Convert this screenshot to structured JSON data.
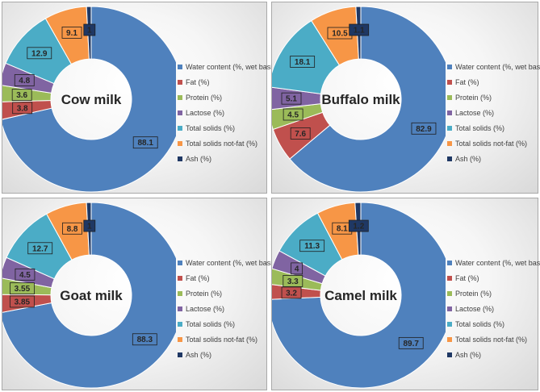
{
  "legend_labels": [
    "Water content (%, wet basis)",
    "Fat (%)",
    "Protein (%)",
    "Lactose (%)",
    "Total solids (%)",
    "Total solids not-fat (%)",
    "Ash (%)"
  ],
  "colors": [
    "#4f81bd",
    "#c0504d",
    "#9bbb59",
    "#8064a2",
    "#4bacc6",
    "#f79646",
    "#1f3864"
  ],
  "chart_data": [
    {
      "type": "pie",
      "subtype": "doughnut",
      "title": "Cow milk",
      "categories": [
        "Water content (%, wet basis)",
        "Fat (%)",
        "Protein (%)",
        "Lactose (%)",
        "Total solids (%)",
        "Total solids not-fat (%)",
        "Ash (%)"
      ],
      "values": [
        88.1,
        3.8,
        3.6,
        4.8,
        12.9,
        9.1,
        1
      ],
      "labels": [
        "88.1",
        "3.8",
        "3.6",
        "4.8",
        "12.9",
        "9.1",
        "1"
      ],
      "legend_position": "right"
    },
    {
      "type": "pie",
      "subtype": "doughnut",
      "title": "Buffalo milk",
      "categories": [
        "Water content (%, wet basis)",
        "Fat (%)",
        "Protein (%)",
        "Lactose (%)",
        "Total solids (%)",
        "Total solids not-fat (%)",
        "Ash (%)"
      ],
      "values": [
        82.9,
        7.6,
        4.5,
        5.1,
        18.1,
        10.5,
        1.1
      ],
      "labels": [
        "82.9",
        "7.6",
        "4.5",
        "5.1",
        "18.1",
        "10.5",
        "1.1"
      ],
      "legend_position": "right"
    },
    {
      "type": "pie",
      "subtype": "doughnut",
      "title": "Goat milk",
      "categories": [
        "Water content (%, wet basis)",
        "Fat (%)",
        "Protein (%)",
        "Lactose (%)",
        "Total solids (%)",
        "Total solids not-fat (%)",
        "Ash (%)"
      ],
      "values": [
        88.3,
        3.85,
        3.55,
        4.5,
        12.7,
        8.8,
        1
      ],
      "labels": [
        "88.3",
        "3.85",
        "3.55",
        "4.5",
        "12.7",
        "8.8",
        "1"
      ],
      "legend_position": "right"
    },
    {
      "type": "pie",
      "subtype": "doughnut",
      "title": "Camel milk",
      "categories": [
        "Water content (%, wet basis)",
        "Fat (%)",
        "Protein (%)",
        "Lactose (%)",
        "Total solids (%)",
        "Total solids not-fat (%)",
        "Ash (%)"
      ],
      "values": [
        89.7,
        3.2,
        3.3,
        4,
        11.3,
        8.1,
        1.2
      ],
      "labels": [
        "89.7",
        "3.2",
        "3.3",
        "4",
        "11.3",
        "8.1",
        "1.2"
      ],
      "legend_position": "right"
    }
  ]
}
